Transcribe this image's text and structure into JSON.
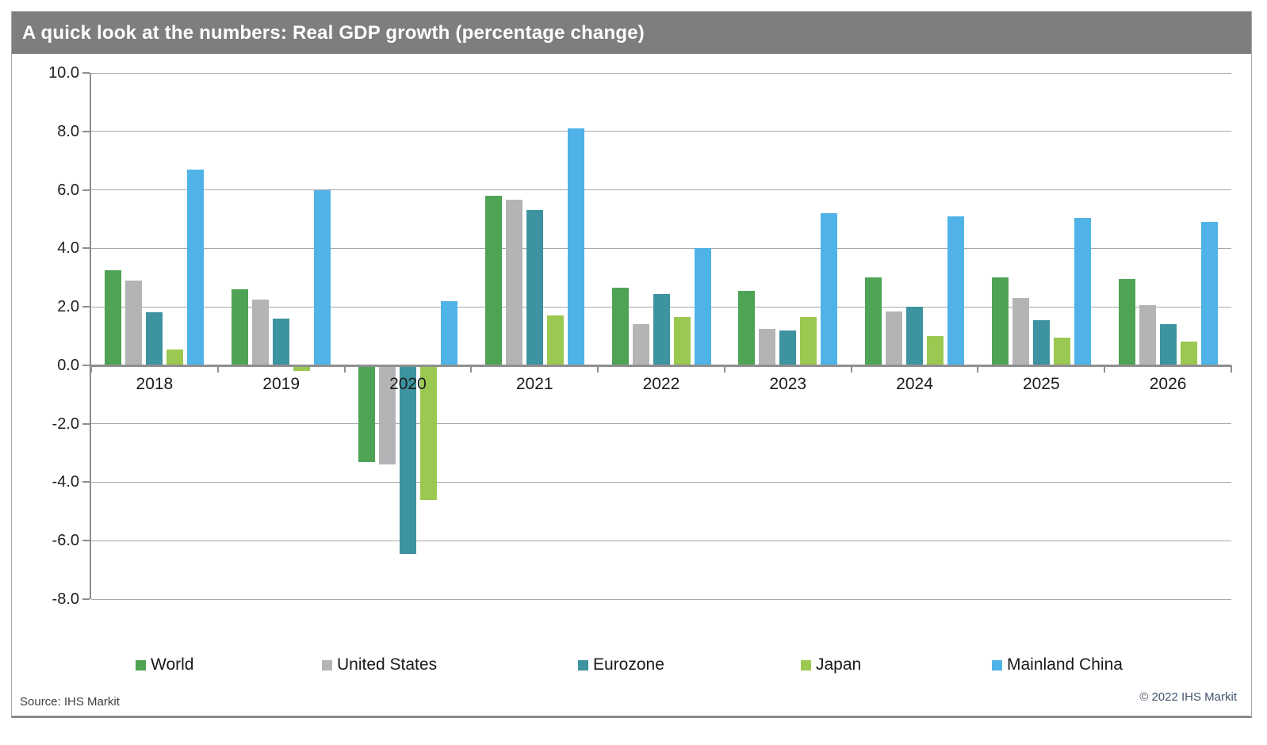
{
  "header": {
    "title": "A quick look at the numbers: Real GDP growth (percentage change)"
  },
  "footer": {
    "source": "Source:  IHS Markit",
    "copyright": "© 2022  IHS Markit"
  },
  "colors": {
    "title_bar_bg": "#7d7e7e",
    "title_text": "#ffffff",
    "gridline": "#a8a8a8",
    "axis": "#8f8f8f",
    "world": "#4fa355",
    "united_states": "#b4b4b7",
    "eurozone": "#3e93a0",
    "japan": "#9bc851",
    "mainland_china": "#50b3e8"
  },
  "chart_data": {
    "type": "bar",
    "title": "A quick look at the numbers: Real GDP growth (percentage change)",
    "categories": [
      "2018",
      "2019",
      "2020",
      "2021",
      "2022",
      "2023",
      "2024",
      "2025",
      "2026"
    ],
    "series": [
      {
        "name": "World",
        "color": "#4fa355",
        "values": [
          3.25,
          2.6,
          -3.3,
          5.8,
          2.65,
          2.55,
          3.0,
          3.0,
          2.95
        ]
      },
      {
        "name": "United States",
        "color": "#b4b4b7",
        "values": [
          2.9,
          2.25,
          -3.4,
          5.65,
          1.4,
          1.25,
          1.85,
          2.3,
          2.05
        ]
      },
      {
        "name": "Eurozone",
        "color": "#3e93a0",
        "values": [
          1.8,
          1.6,
          -6.45,
          5.3,
          2.45,
          1.2,
          2.0,
          1.55,
          1.4
        ]
      },
      {
        "name": "Japan",
        "color": "#9bc851",
        "values": [
          0.55,
          -0.2,
          -4.6,
          1.7,
          1.65,
          1.65,
          1.0,
          0.95,
          0.8
        ]
      },
      {
        "name": "Mainland China",
        "color": "#50b3e8",
        "values": [
          6.7,
          6.0,
          2.2,
          8.1,
          4.0,
          5.2,
          5.1,
          5.05,
          4.9
        ]
      }
    ],
    "ylim": [
      -8,
      10
    ],
    "yticks": [
      "10.0",
      "8.0",
      "6.0",
      "4.0",
      "2.0",
      "0.0",
      "-2.0",
      "-4.0",
      "-6.0",
      "-8.0"
    ],
    "ytick_values": [
      10,
      8,
      6,
      4,
      2,
      0,
      -2,
      -4,
      -6,
      -8
    ],
    "xlabel": "",
    "ylabel": "",
    "grid": true,
    "legend_position": "bottom"
  }
}
